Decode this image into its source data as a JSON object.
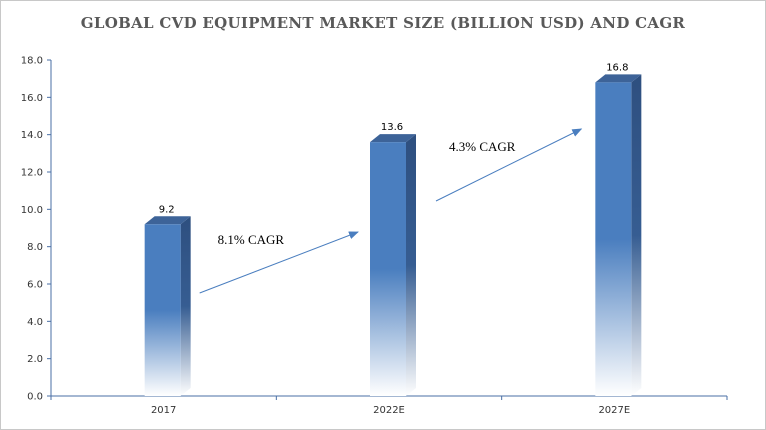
{
  "chart_data": {
    "type": "bar",
    "title": "GLOBAL CVD EQUIPMENT MARKET SIZE  (BILLION USD) AND CAGR",
    "categories": [
      "2017",
      "2022E",
      "2027E"
    ],
    "values": [
      9.2,
      13.6,
      16.8
    ],
    "data_labels": [
      "9.2",
      "13.6",
      "16.8"
    ],
    "y_ticks": [
      "0.0",
      "2.0",
      "4.0",
      "6.0",
      "8.0",
      "10.0",
      "12.0",
      "14.0",
      "16.0",
      "18.0"
    ],
    "ylim": [
      0,
      18
    ],
    "xlabel": "",
    "ylabel": "",
    "grid": false,
    "annotations": [
      {
        "text": "8.1% CAGR",
        "from": "2017",
        "to": "2022E"
      },
      {
        "text": "4.3% CAGR",
        "from": "2022E",
        "to": "2027E"
      }
    ],
    "colors": {
      "bar_front": "#4a7ebf",
      "bar_side": "#2e4f7f",
      "bar_top": "#3d6398",
      "arrow": "#4a7ebf",
      "axis": "#4a6fa5"
    }
  }
}
